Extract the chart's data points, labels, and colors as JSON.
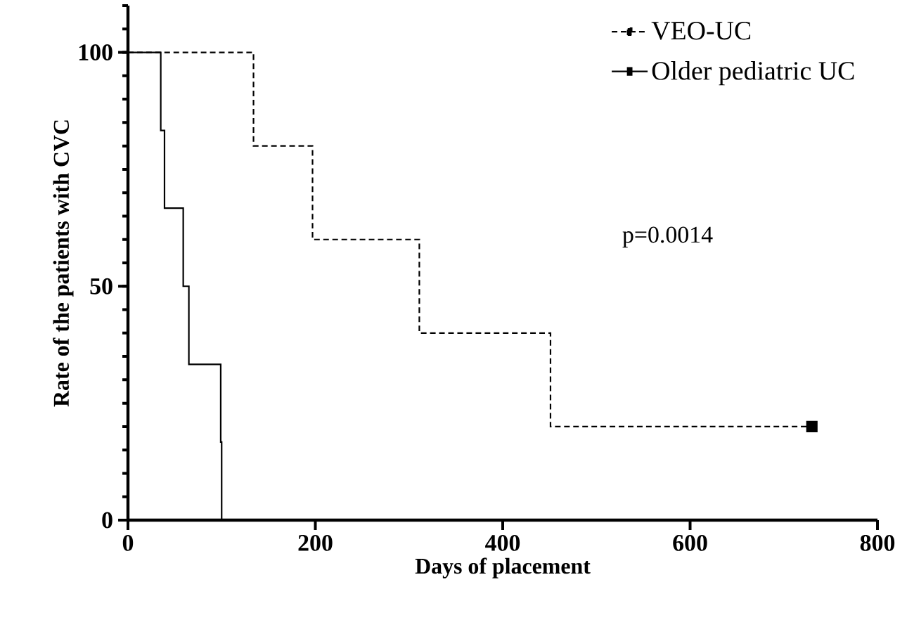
{
  "chart_data": {
    "type": "step",
    "xlabel": "Days of placement",
    "ylabel": "Rate of the patients with CVC",
    "xlim": [
      0,
      800
    ],
    "xticks": [
      0,
      200,
      400,
      600,
      800
    ],
    "ylim": [
      0,
      110
    ],
    "yticks": [
      0,
      50,
      100
    ],
    "legend": "top right",
    "grid": false,
    "annotations": [
      "p=0.0014"
    ],
    "series": [
      {
        "name": "VEO-UC",
        "color": "#000000",
        "line_style": "dashed",
        "marker": "none",
        "x": [
          0,
          134,
          197,
          311,
          451,
          730
        ],
        "values": [
          100,
          80,
          60,
          40,
          20,
          20
        ]
      },
      {
        "name": "Older pediatric UC",
        "color": "#000000",
        "line_style": "solid",
        "marker": "none",
        "x": [
          0,
          35,
          39,
          59,
          65,
          99,
          100
        ],
        "values": [
          100,
          83.3,
          66.7,
          50,
          33.3,
          16.7,
          0
        ]
      },
      {
        "type": "scatter",
        "color": "#000000",
        "marker": "square",
        "x": [
          730
        ],
        "values": [
          20
        ]
      }
    ]
  }
}
